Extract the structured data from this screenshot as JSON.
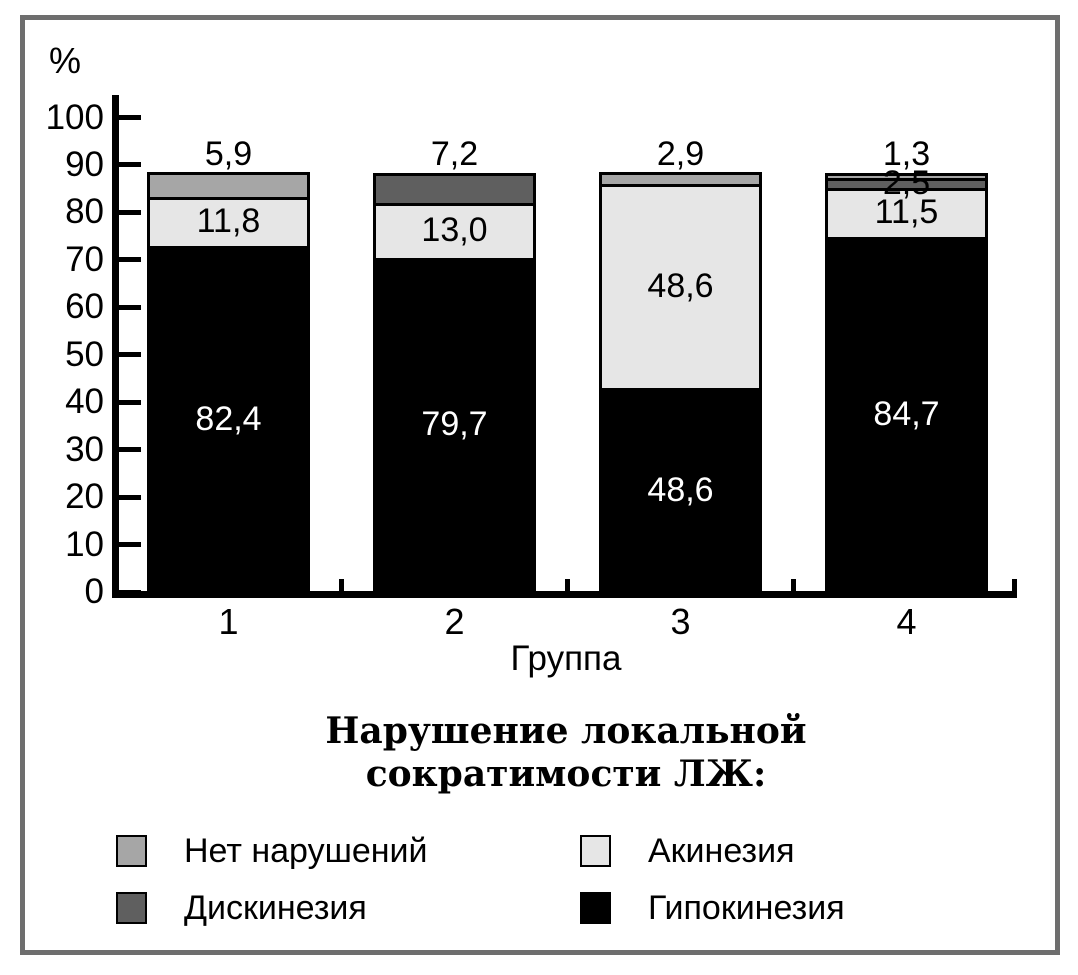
{
  "frame_color": "#6e6e6e",
  "chart_data": {
    "type": "stacked-bar",
    "title": "Нарушение локальной сократимости ЛЖ:",
    "title_lines": [
      "Нарушение локальной",
      "сократимости ЛЖ:"
    ],
    "ylabel": "%",
    "xlabel": "Группа",
    "ylim": [
      0,
      100
    ],
    "yticks": [
      "0",
      "10",
      "20",
      "30",
      "40",
      "50",
      "60",
      "70",
      "80",
      "90",
      "100"
    ],
    "categories": [
      "1",
      "2",
      "3",
      "4"
    ],
    "grid": false,
    "legend_position": "bottom",
    "series": [
      {
        "name": "Гипокинезия",
        "color": "#000000",
        "label_color": "#ffffff",
        "values": [
          82.4,
          79.7,
          48.6,
          84.7
        ],
        "value_labels": [
          "82,4",
          "79,7",
          "48,6",
          "84,7"
        ]
      },
      {
        "name": "Акинезия",
        "color": "#e6e6e6",
        "label_color": "#000000",
        "values": [
          11.8,
          13.0,
          48.6,
          11.5
        ],
        "value_labels": [
          "11,8",
          "13,0",
          "48,6",
          "11,5"
        ]
      },
      {
        "name": "Дискинезия",
        "color": "#5f5f5f",
        "label_color": "#000000",
        "values": [
          0,
          7.2,
          0,
          2.5
        ],
        "value_labels": [
          "",
          "7,2",
          "",
          "2,5"
        ]
      },
      {
        "name": "Нет нарушений",
        "color": "#a6a6a6",
        "label_color": "#000000",
        "values": [
          5.9,
          0,
          2.9,
          1.3
        ],
        "value_labels": [
          "5,9",
          "",
          "2,9",
          "1,3"
        ]
      }
    ],
    "legend": {
      "items": [
        {
          "label": "Нет нарушений",
          "color": "#a6a6a6"
        },
        {
          "label": "Дискинезия",
          "color": "#5f5f5f"
        },
        {
          "label": "Акинезия",
          "color": "#e6e6e6"
        },
        {
          "label": "Гипокинезия",
          "color": "#000000"
        }
      ]
    }
  }
}
